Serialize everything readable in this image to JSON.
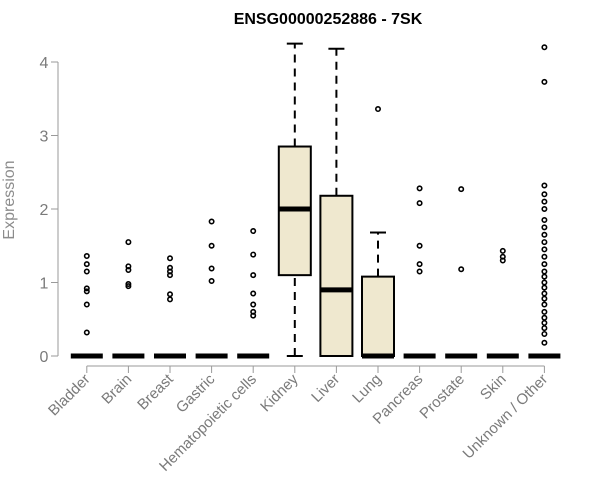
{
  "chart_data": {
    "type": "box",
    "title": "ENSG00000252886 - 7SK",
    "xlabel": "",
    "ylabel": "Expression",
    "ylim": [
      0,
      4.2
    ],
    "yticks": [
      0,
      1,
      2,
      3,
      4
    ],
    "grid": false,
    "box_fill": "#efe8cf",
    "box_stroke": "#000000",
    "axis_color": "#9a9a9a",
    "categories": [
      "Bladder",
      "Brain",
      "Breast",
      "Gastric",
      "Hematopoietic cells",
      "Kidney",
      "Liver",
      "Lung",
      "Pancreas",
      "Prostate",
      "Skin",
      "Unknown / Other"
    ],
    "boxes": [
      {
        "category": "Bladder",
        "q1": 0,
        "median": 0,
        "q3": 0,
        "whisker_low": 0,
        "whisker_high": 0,
        "outliers": [
          0.32,
          0.7,
          0.88,
          0.92,
          1.15,
          1.25,
          1.36
        ]
      },
      {
        "category": "Brain",
        "q1": 0,
        "median": 0,
        "q3": 0,
        "whisker_low": 0,
        "whisker_high": 0,
        "outliers": [
          0.95,
          0.98,
          1.17,
          1.22,
          1.55
        ]
      },
      {
        "category": "Breast",
        "q1": 0,
        "median": 0,
        "q3": 0,
        "whisker_low": 0,
        "whisker_high": 0,
        "outliers": [
          0.77,
          0.84,
          1.1,
          1.15,
          1.2,
          1.33
        ]
      },
      {
        "category": "Gastric",
        "q1": 0,
        "median": 0,
        "q3": 0,
        "whisker_low": 0,
        "whisker_high": 0,
        "outliers": [
          1.02,
          1.19,
          1.5,
          1.83
        ]
      },
      {
        "category": "Hematopoietic cells",
        "q1": 0,
        "median": 0,
        "q3": 0,
        "whisker_low": 0,
        "whisker_high": 0,
        "outliers": [
          0.55,
          0.6,
          0.7,
          0.85,
          1.1,
          1.38,
          1.7
        ]
      },
      {
        "category": "Kidney",
        "q1": 1.1,
        "median": 2.0,
        "q3": 2.85,
        "whisker_low": 0,
        "whisker_high": 4.25,
        "outliers": []
      },
      {
        "category": "Liver",
        "q1": 0,
        "median": 0.9,
        "q3": 2.18,
        "whisker_low": 0,
        "whisker_high": 4.18,
        "outliers": []
      },
      {
        "category": "Lung",
        "q1": 0,
        "median": 0,
        "q3": 1.08,
        "whisker_low": 0,
        "whisker_high": 1.68,
        "outliers": [
          3.36
        ]
      },
      {
        "category": "Pancreas",
        "q1": 0,
        "median": 0,
        "q3": 0,
        "whisker_low": 0,
        "whisker_high": 0,
        "outliers": [
          1.15,
          1.25,
          1.5,
          2.08,
          2.28
        ]
      },
      {
        "category": "Prostate",
        "q1": 0,
        "median": 0,
        "q3": 0,
        "whisker_low": 0,
        "whisker_high": 0,
        "outliers": [
          1.18,
          2.27
        ]
      },
      {
        "category": "Skin",
        "q1": 0,
        "median": 0,
        "q3": 0,
        "whisker_low": 0,
        "whisker_high": 0,
        "outliers": [
          1.3,
          1.35,
          1.43
        ]
      },
      {
        "category": "Unknown / Other",
        "q1": 0,
        "median": 0,
        "q3": 0,
        "whisker_low": 0,
        "whisker_high": 0,
        "outliers": [
          0.18,
          0.3,
          0.38,
          0.45,
          0.52,
          0.6,
          0.7,
          0.78,
          0.85,
          0.93,
          1.0,
          1.08,
          1.15,
          1.25,
          1.35,
          1.45,
          1.55,
          1.65,
          1.75,
          1.85,
          2.0,
          2.1,
          2.2,
          2.32,
          3.73,
          4.2
        ]
      }
    ]
  }
}
